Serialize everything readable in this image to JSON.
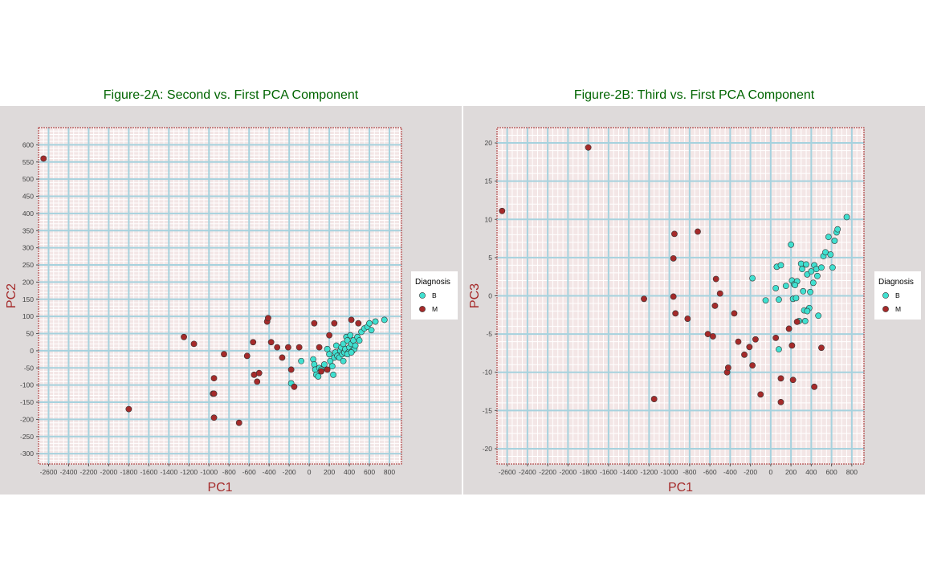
{
  "charts": [
    {
      "title": "Figure-2A: Second vs. First PCA Component",
      "xlabel": "PC1",
      "ylabel": "PC2",
      "legend_title": "Diagnosis",
      "legend_items": [
        {
          "label": "B",
          "color": "#40e0d0"
        },
        {
          "label": "M",
          "color": "#a52a2a"
        }
      ]
    },
    {
      "title": "Figure-2B: Third vs. First PCA Component",
      "xlabel": "PC1",
      "ylabel": "PC3",
      "legend_title": "Diagnosis",
      "legend_items": [
        {
          "label": "B",
          "color": "#40e0d0"
        },
        {
          "label": "M",
          "color": "#a52a2a"
        }
      ]
    }
  ],
  "chart_data": [
    {
      "type": "scatter",
      "title": "Figure-2A: Second vs. First PCA Component",
      "xlabel": "PC1",
      "ylabel": "PC2",
      "xlim": [
        -2700,
        920
      ],
      "ylim": [
        -330,
        650
      ],
      "xticks": [
        -2600,
        -2400,
        -2200,
        -2000,
        -1800,
        -1600,
        -1400,
        -1200,
        -1000,
        -800,
        -600,
        -400,
        -200,
        0,
        200,
        400,
        600,
        800
      ],
      "yticks": [
        -300,
        -250,
        -200,
        -150,
        -100,
        -50,
        0,
        50,
        100,
        150,
        200,
        250,
        300,
        350,
        400,
        450,
        500,
        550,
        600
      ],
      "grid": true,
      "legend": "right",
      "series": [
        {
          "name": "B",
          "color": "#40e0d0",
          "points": [
            [
              -180,
              -95
            ],
            [
              -80,
              -30
            ],
            [
              40,
              -25
            ],
            [
              50,
              -40
            ],
            [
              60,
              -55
            ],
            [
              70,
              -70
            ],
            [
              90,
              -75
            ],
            [
              100,
              -50
            ],
            [
              120,
              -55
            ],
            [
              150,
              -40
            ],
            [
              180,
              5
            ],
            [
              200,
              -10
            ],
            [
              210,
              -30
            ],
            [
              230,
              -45
            ],
            [
              240,
              -70
            ],
            [
              250,
              -20
            ],
            [
              260,
              -5
            ],
            [
              270,
              15
            ],
            [
              280,
              -15
            ],
            [
              300,
              -20
            ],
            [
              310,
              0
            ],
            [
              320,
              10
            ],
            [
              330,
              -10
            ],
            [
              340,
              20
            ],
            [
              350,
              -5
            ],
            [
              360,
              5
            ],
            [
              370,
              40
            ],
            [
              380,
              30
            ],
            [
              390,
              -5
            ],
            [
              400,
              10
            ],
            [
              410,
              45
            ],
            [
              420,
              20
            ],
            [
              430,
              0
            ],
            [
              440,
              30
            ],
            [
              450,
              5
            ],
            [
              460,
              15
            ],
            [
              480,
              40
            ],
            [
              500,
              30
            ],
            [
              520,
              55
            ],
            [
              550,
              65
            ],
            [
              580,
              70
            ],
            [
              600,
              80
            ],
            [
              620,
              60
            ],
            [
              660,
              85
            ],
            [
              750,
              90
            ],
            [
              380,
              -10
            ],
            [
              420,
              -5
            ],
            [
              340,
              -30
            ]
          ]
        },
        {
          "name": "M",
          "color": "#a52a2a",
          "points": [
            [
              -2650,
              560
            ],
            [
              -1800,
              -170
            ],
            [
              -1250,
              40
            ],
            [
              -1150,
              20
            ],
            [
              -950,
              -80
            ],
            [
              -960,
              -125
            ],
            [
              -950,
              -125
            ],
            [
              -950,
              -195
            ],
            [
              -850,
              -10
            ],
            [
              -700,
              -210
            ],
            [
              -620,
              -15
            ],
            [
              -560,
              25
            ],
            [
              -550,
              -70
            ],
            [
              -520,
              -90
            ],
            [
              -500,
              -65
            ],
            [
              -420,
              85
            ],
            [
              -410,
              95
            ],
            [
              -380,
              25
            ],
            [
              -320,
              10
            ],
            [
              -270,
              -20
            ],
            [
              -210,
              10
            ],
            [
              -180,
              -55
            ],
            [
              -150,
              -105
            ],
            [
              -100,
              10
            ],
            [
              50,
              80
            ],
            [
              100,
              10
            ],
            [
              120,
              -60
            ],
            [
              180,
              -55
            ],
            [
              200,
              45
            ],
            [
              250,
              80
            ],
            [
              420,
              90
            ],
            [
              490,
              80
            ]
          ]
        }
      ]
    },
    {
      "type": "scatter",
      "title": "Figure-2B: Third vs. First PCA Component",
      "xlabel": "PC1",
      "ylabel": "PC3",
      "xlim": [
        -2700,
        920
      ],
      "ylim": [
        -22,
        22
      ],
      "xticks": [
        -2600,
        -2400,
        -2200,
        -2000,
        -1800,
        -1600,
        -1400,
        -1200,
        -1000,
        -800,
        -600,
        -400,
        -200,
        0,
        200,
        400,
        600,
        800
      ],
      "yticks": [
        -20,
        -15,
        -10,
        -5,
        0,
        5,
        10,
        15,
        20
      ],
      "grid": true,
      "legend": "right",
      "series": [
        {
          "name": "B",
          "color": "#40e0d0",
          "points": [
            [
              -180,
              2.3
            ],
            [
              -50,
              -0.6
            ],
            [
              50,
              1.0
            ],
            [
              60,
              3.8
            ],
            [
              80,
              -0.5
            ],
            [
              100,
              4.0
            ],
            [
              150,
              1.3
            ],
            [
              200,
              6.7
            ],
            [
              210,
              2.0
            ],
            [
              220,
              -0.4
            ],
            [
              230,
              1.5
            ],
            [
              250,
              -0.3
            ],
            [
              260,
              1.9
            ],
            [
              280,
              -3.3
            ],
            [
              300,
              4.2
            ],
            [
              310,
              3.5
            ],
            [
              320,
              0.6
            ],
            [
              330,
              -1.9
            ],
            [
              340,
              -3.3
            ],
            [
              350,
              4.1
            ],
            [
              360,
              2.8
            ],
            [
              380,
              -1.6
            ],
            [
              390,
              0.5
            ],
            [
              400,
              3.2
            ],
            [
              420,
              1.7
            ],
            [
              430,
              4.0
            ],
            [
              450,
              3.5
            ],
            [
              460,
              2.6
            ],
            [
              470,
              -2.6
            ],
            [
              500,
              3.7
            ],
            [
              520,
              5.2
            ],
            [
              540,
              5.7
            ],
            [
              570,
              7.7
            ],
            [
              590,
              5.4
            ],
            [
              610,
              3.7
            ],
            [
              630,
              7.2
            ],
            [
              650,
              8.3
            ],
            [
              660,
              8.7
            ],
            [
              750,
              10.3
            ],
            [
              80,
              -7.0
            ],
            [
              240,
              1.4
            ],
            [
              360,
              -2.0
            ]
          ]
        },
        {
          "name": "M",
          "color": "#a52a2a",
          "points": [
            [
              -2650,
              11.1
            ],
            [
              -1800,
              19.4
            ],
            [
              -1250,
              -0.4
            ],
            [
              -1150,
              -13.5
            ],
            [
              -950,
              8.1
            ],
            [
              -960,
              4.9
            ],
            [
              -960,
              -0.1
            ],
            [
              -940,
              -2.3
            ],
            [
              -820,
              -3.0
            ],
            [
              -720,
              8.4
            ],
            [
              -620,
              -5.0
            ],
            [
              -570,
              -5.3
            ],
            [
              -550,
              -1.3
            ],
            [
              -540,
              2.2
            ],
            [
              -500,
              0.3
            ],
            [
              -430,
              -10.0
            ],
            [
              -420,
              -9.4
            ],
            [
              -360,
              -2.3
            ],
            [
              -320,
              -6.0
            ],
            [
              -260,
              -7.7
            ],
            [
              -210,
              -6.7
            ],
            [
              -180,
              -9.1
            ],
            [
              -150,
              -5.7
            ],
            [
              -100,
              -12.9
            ],
            [
              50,
              -5.5
            ],
            [
              100,
              -10.8
            ],
            [
              100,
              -13.9
            ],
            [
              180,
              -4.3
            ],
            [
              210,
              -6.5
            ],
            [
              220,
              -11.0
            ],
            [
              260,
              -3.4
            ],
            [
              430,
              -11.9
            ],
            [
              500,
              -6.8
            ]
          ]
        }
      ]
    }
  ]
}
